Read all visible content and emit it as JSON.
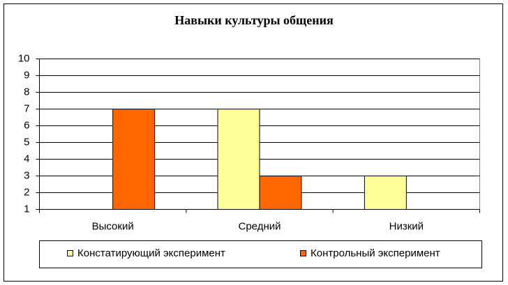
{
  "chart_data": {
    "type": "bar",
    "title": "Навыки культуры общения",
    "categories": [
      "Высокий",
      "Средний",
      "Низкий"
    ],
    "series": [
      {
        "name": "Констатирующий эксперимент",
        "color": "#ffff99",
        "values": [
          1,
          7,
          3
        ]
      },
      {
        "name": "Контрольный эксперимент",
        "color": "#ff6600",
        "values": [
          7,
          3,
          1
        ]
      }
    ],
    "ylim": [
      1,
      10
    ],
    "yticks": [
      1,
      2,
      3,
      4,
      5,
      6,
      7,
      8,
      9,
      10
    ],
    "grid": true,
    "legend": "bottom"
  }
}
